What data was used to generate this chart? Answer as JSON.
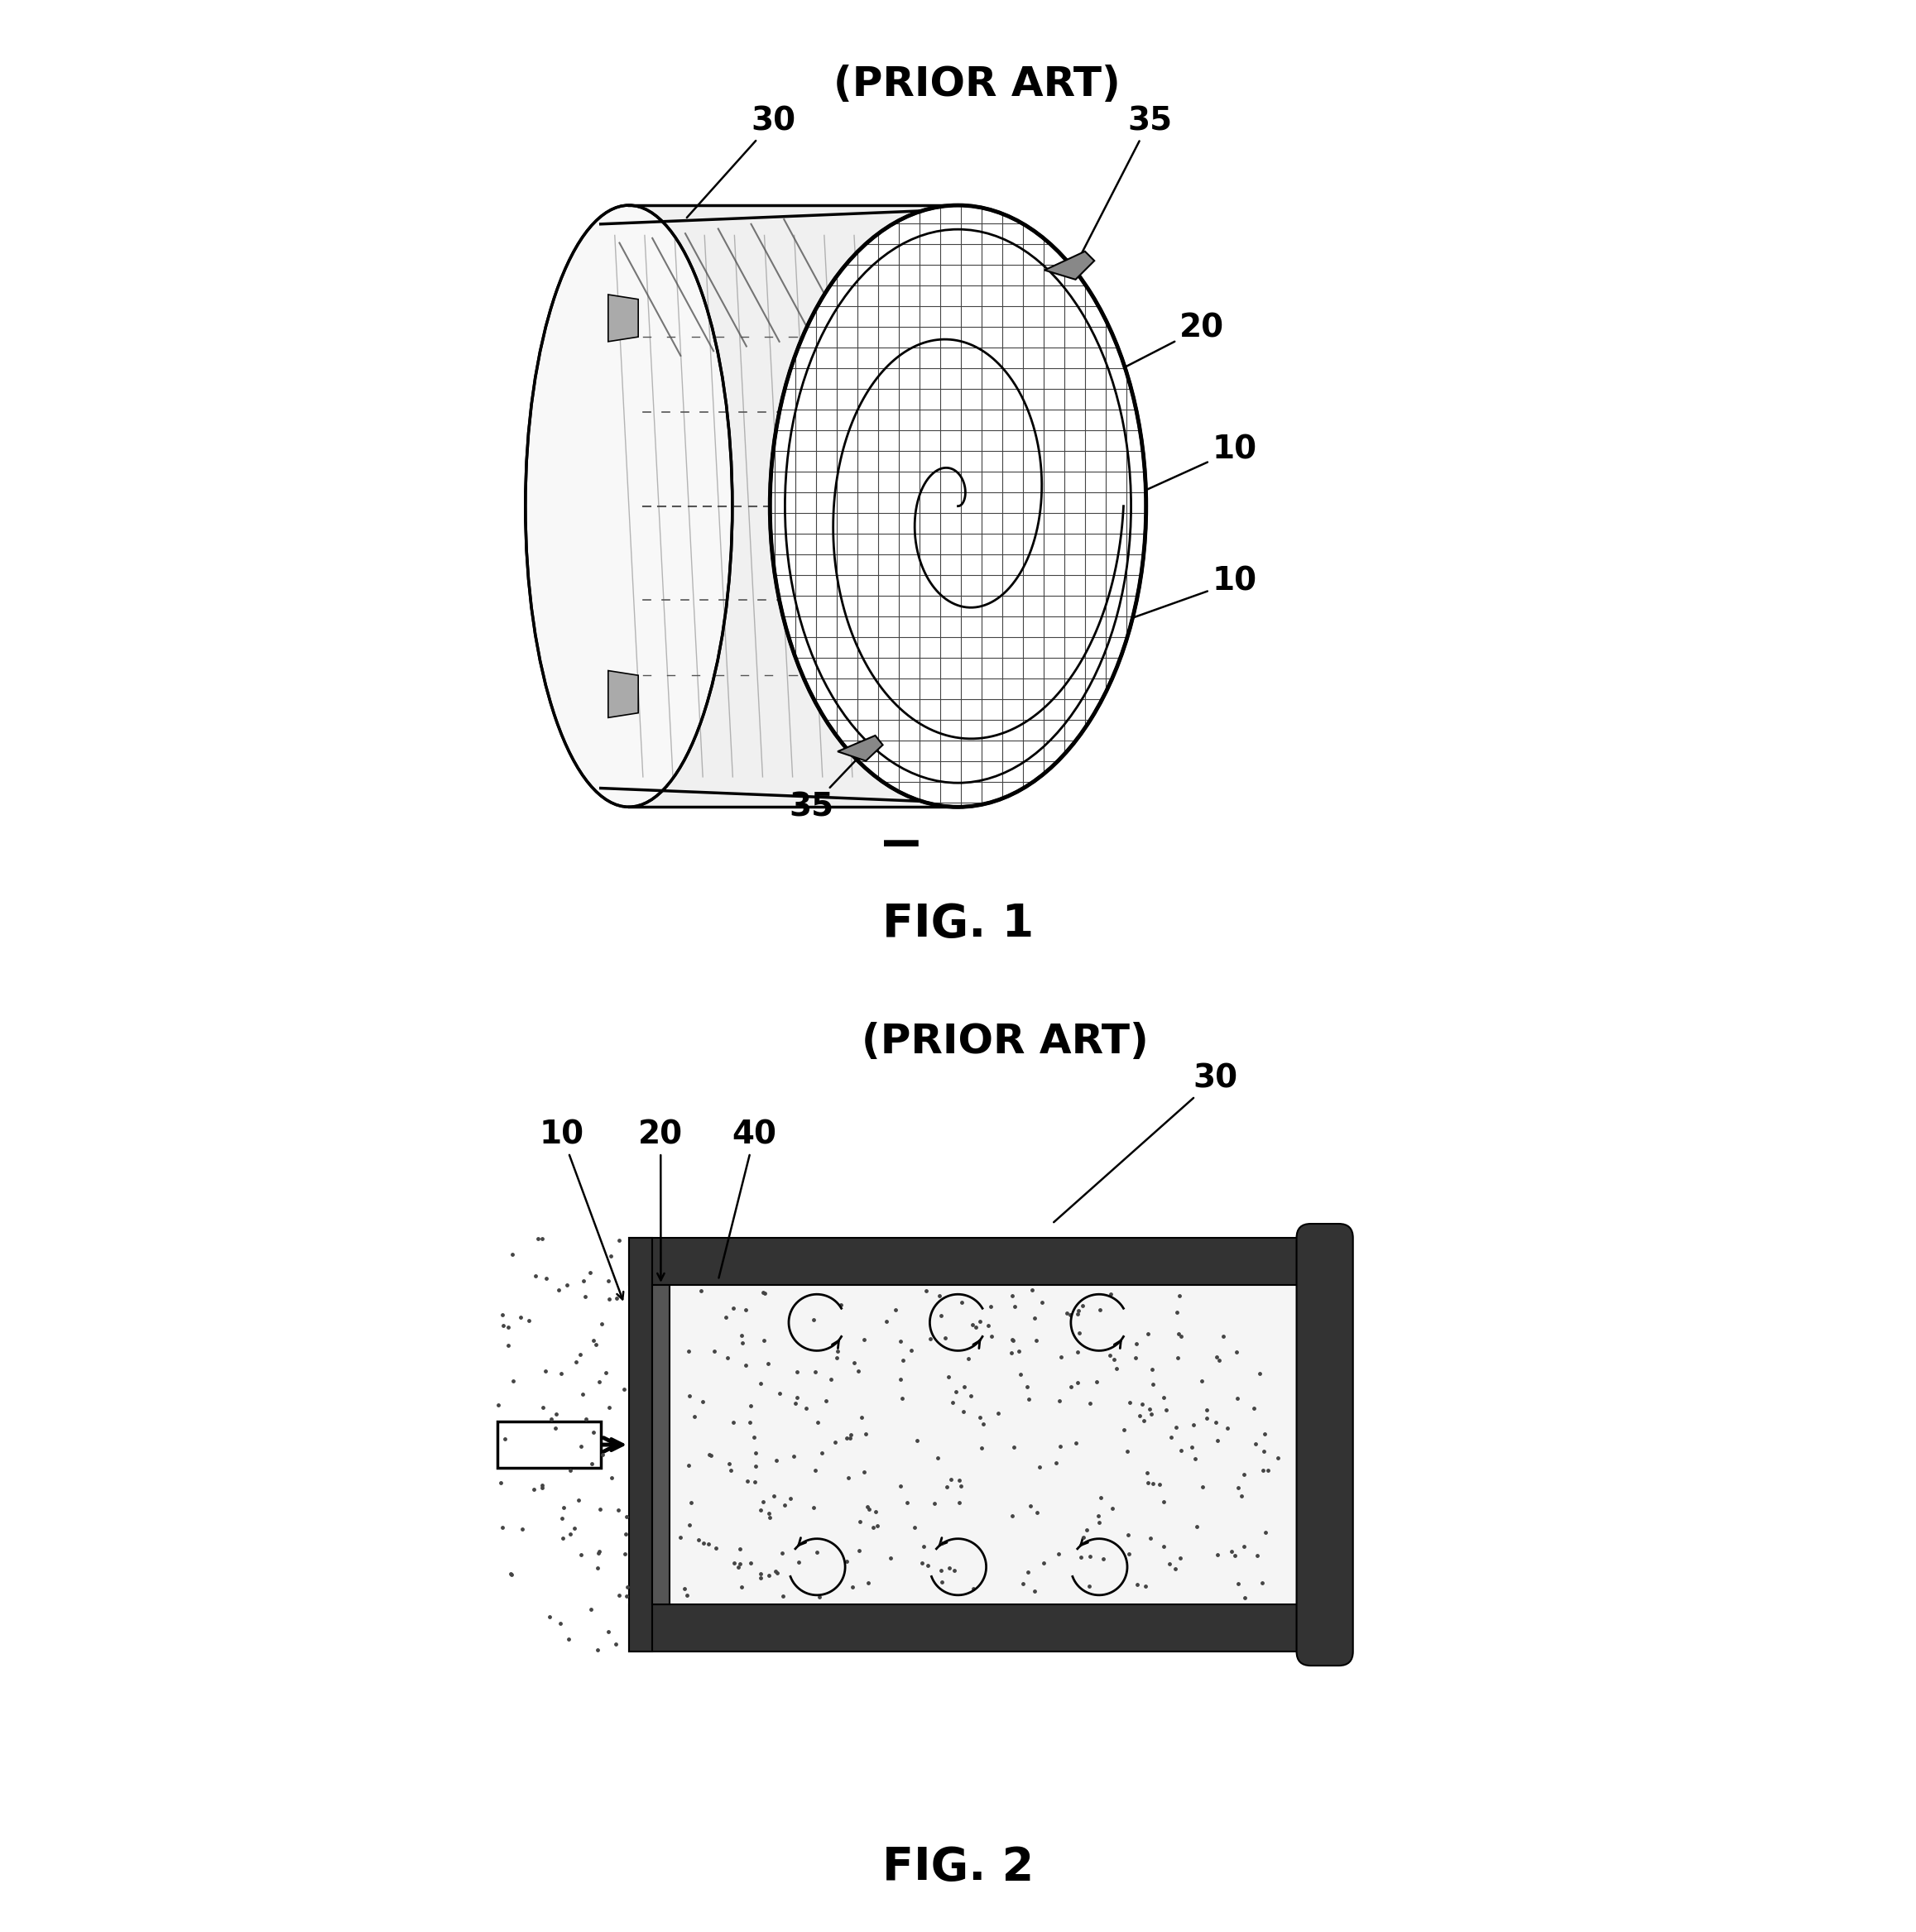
{
  "fig1_title": "(PRIOR ART)",
  "fig1_label": "FIG. 1",
  "fig2_title": "(PRIOR ART)",
  "fig2_label": "FIG. 2",
  "bg_color": "#ffffff",
  "line_color": "#000000",
  "label_fontsize": 28,
  "title_fontsize": 36,
  "figlabel_fontsize": 40
}
